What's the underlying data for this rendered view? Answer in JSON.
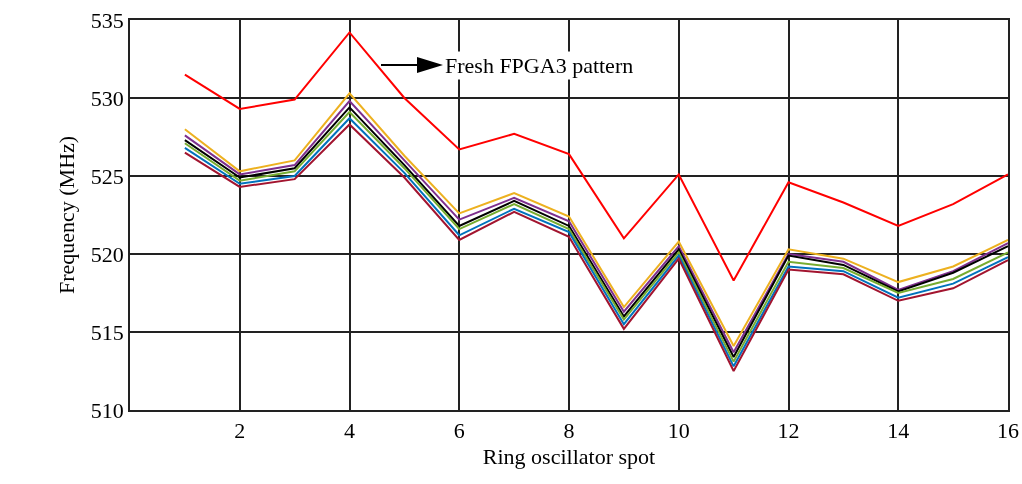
{
  "chart_data": {
    "type": "line",
    "xlabel": "Ring oscillator spot",
    "ylabel": "Frequency (MHz)",
    "x": [
      1,
      2,
      3,
      4,
      5,
      6,
      7,
      8,
      9,
      10,
      11,
      12,
      13,
      14,
      15,
      16
    ],
    "series": [
      {
        "color": "#ff0000",
        "values": [
          531.5,
          529.3,
          529.9,
          534.2,
          530.0,
          526.7,
          527.7,
          526.4,
          521.0,
          525.1,
          518.3,
          524.6,
          523.3,
          521.8,
          523.2,
          525.1
        ]
      },
      {
        "color": "#edb120",
        "values": [
          528.0,
          525.3,
          526.0,
          530.3,
          526.3,
          522.6,
          523.9,
          522.4,
          516.6,
          520.8,
          514.1,
          520.3,
          519.7,
          518.2,
          519.2,
          520.9
        ]
      },
      {
        "color": "#7e2f8e",
        "values": [
          527.6,
          525.1,
          525.7,
          529.8,
          526.0,
          522.2,
          523.6,
          522.1,
          516.3,
          520.5,
          513.7,
          520.0,
          519.5,
          517.7,
          518.9,
          520.7
        ]
      },
      {
        "color": "#000000",
        "values": [
          527.3,
          524.9,
          525.5,
          529.4,
          525.7,
          521.8,
          523.4,
          521.8,
          516.0,
          520.3,
          513.4,
          519.9,
          519.3,
          517.6,
          518.8,
          520.5
        ]
      },
      {
        "color": "#77ac30",
        "values": [
          527.1,
          524.7,
          525.3,
          529.1,
          525.5,
          521.6,
          523.2,
          521.6,
          515.8,
          520.1,
          513.1,
          519.5,
          519.1,
          517.5,
          518.4,
          520.1
        ]
      },
      {
        "color": "#0072bd",
        "values": [
          526.8,
          524.5,
          525.0,
          528.7,
          525.2,
          521.2,
          522.9,
          521.4,
          515.5,
          519.9,
          512.8,
          519.2,
          518.9,
          517.2,
          518.1,
          519.8
        ]
      },
      {
        "color": "#a2142f",
        "values": [
          526.5,
          524.3,
          524.8,
          528.3,
          524.9,
          520.9,
          522.7,
          521.1,
          515.2,
          519.7,
          512.5,
          519.0,
          518.7,
          517.0,
          517.8,
          519.6
        ]
      }
    ],
    "annotations": [
      "Fresh FPGA3 pattern"
    ],
    "xlim": [
      0,
      16
    ],
    "xticks": [
      2,
      4,
      6,
      8,
      10,
      12,
      14,
      16
    ],
    "ylim": [
      510,
      535
    ],
    "yticks": [
      510,
      515,
      520,
      525,
      530,
      535
    ],
    "grid": true,
    "line_style": "solid"
  }
}
